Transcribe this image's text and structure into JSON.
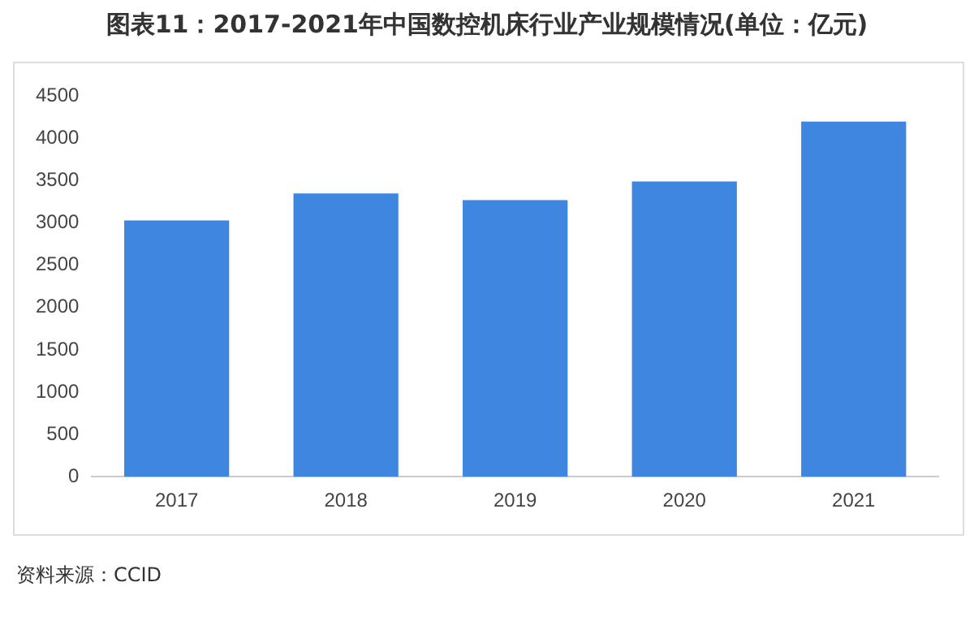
{
  "chart_data": {
    "type": "bar",
    "title": "图表11：2017-2021年中国数控机床行业产业规模情况(单位：亿元)",
    "categories": [
      "2017",
      "2018",
      "2019",
      "2020",
      "2021"
    ],
    "values": [
      3030,
      3350,
      3270,
      3490,
      4200
    ],
    "color": "#3f86e0",
    "ylim": [
      0,
      4500
    ],
    "yticks": [
      0,
      500,
      1000,
      1500,
      2000,
      2500,
      3000,
      3500,
      4000,
      4500
    ],
    "grid": false,
    "legend": false,
    "annotations": [
      "资料来源：CCID"
    ]
  }
}
